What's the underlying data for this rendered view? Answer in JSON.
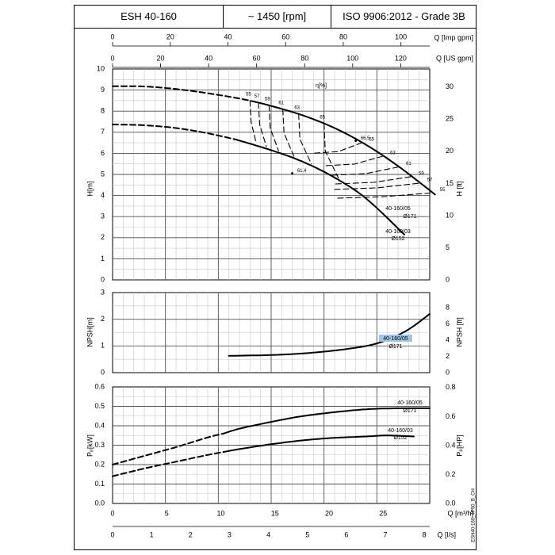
{
  "header": {
    "model": "ESH 40-160",
    "speed": "~ 1450 [rpm]",
    "standard": "ISO 9906:2012 - Grade 3B"
  },
  "side_label": "ESH40-160_4P50_B_CH",
  "chart_data": [
    {
      "type": "line",
      "id": "head",
      "top_axis_imp": {
        "label": "Q [Imp gpm]",
        "ticks": [
          0,
          20,
          40,
          60,
          80,
          100
        ]
      },
      "top_axis_us": {
        "label": "Q [US gpm]",
        "ticks": [
          0,
          20,
          40,
          60,
          80,
          100,
          120
        ]
      },
      "xlim": [
        0,
        30
      ],
      "ylabel": "H[m]",
      "ylim": [
        0,
        10
      ],
      "yticks": [
        0,
        1,
        2,
        3,
        4,
        5,
        6,
        7,
        8,
        9,
        10
      ],
      "y2label": "H [ft]",
      "y2ticks": [
        0,
        5,
        10,
        15,
        20,
        25,
        30
      ],
      "efficiency_label": "η[%]",
      "series": [
        {
          "name": "40-160/05 Ø171",
          "dashed_x": [
            0,
            3,
            6,
            9,
            12,
            13.4
          ],
          "dashed_y": [
            9.18,
            9.17,
            9.05,
            8.85,
            8.6,
            8.45
          ],
          "solid_x": [
            13.4,
            15,
            18,
            21,
            24,
            27,
            30.5
          ],
          "solid_y": [
            8.45,
            8.25,
            7.8,
            7.2,
            6.4,
            5.4,
            4.05
          ]
        },
        {
          "name": "40-160/03 Ø152",
          "dashed_x": [
            0,
            3,
            6,
            9,
            11.7
          ],
          "dashed_y": [
            7.37,
            7.33,
            7.2,
            6.95,
            6.65
          ],
          "solid_x": [
            11.7,
            15,
            18,
            21,
            24,
            27.6
          ],
          "solid_y": [
            6.65,
            6.15,
            5.6,
            4.85,
            3.85,
            2.15
          ]
        }
      ],
      "curve_labels": [
        {
          "name": "40-160/05",
          "dia": "Ø171"
        },
        {
          "name": "40-160/03",
          "dia": "Ø152"
        }
      ],
      "efficiency_levels": [
        "55",
        "57",
        "59",
        "61",
        "63",
        "65",
        "66.5"
      ],
      "efficiency_isolines": [
        {
          "label": "55",
          "right": "55",
          "left_x": 13.0,
          "right_x": 30.3
        },
        {
          "label": "57",
          "right": "57",
          "left_x": 13.8,
          "right_x": 29.1
        },
        {
          "label": "59",
          "right": "59",
          "left_x": 14.8,
          "right_x": 28.3
        },
        {
          "label": "61",
          "right": "61",
          "left_x": 16.1,
          "right_x": 27.1
        },
        {
          "label": "63",
          "right": "63",
          "left_x": 17.6,
          "right_x": 25.6
        },
        {
          "label": "65",
          "right": "65",
          "left_x": 20.0,
          "right_x": 23.6
        }
      ],
      "efficiency_peak": [
        {
          "label": "66.5",
          "q": 23.0,
          "h": 6.6
        },
        {
          "label": "61.4",
          "q": 17.0,
          "h": 5.05
        }
      ]
    },
    {
      "type": "line",
      "id": "npsh",
      "xlim": [
        0,
        30
      ],
      "ylabel": "NPSH[m]",
      "ylim": [
        0,
        3
      ],
      "yticks": [
        0,
        1,
        2,
        3
      ],
      "y2label": "NPSH [ft]",
      "y2ticks": [
        0,
        2,
        4,
        6,
        8
      ],
      "series": [
        {
          "name": "40-160/05 Ø171",
          "x": [
            11,
            15,
            18,
            21,
            24,
            26,
            28,
            30
          ],
          "y": [
            0.63,
            0.66,
            0.72,
            0.83,
            1.0,
            1.23,
            1.62,
            2.2
          ]
        }
      ],
      "label": {
        "name": "40-160/05",
        "dia": "Ø171"
      }
    },
    {
      "type": "line",
      "id": "power",
      "xlabel": "Q [m³/h]",
      "x2label": "Q [l/s]",
      "xlim": [
        0,
        30
      ],
      "xticks": [
        0,
        5,
        10,
        15,
        20,
        25
      ],
      "x2ticks": [
        0,
        1,
        2,
        3,
        4,
        5,
        6,
        7,
        8
      ],
      "ylabel": "Pₚ[kW]",
      "ylim": [
        0.0,
        0.6
      ],
      "yticks": [
        0.0,
        0.1,
        0.2,
        0.3,
        0.4,
        0.5,
        0.6
      ],
      "y2label": "Pₚ[HP]",
      "y2ticks": [
        0.0,
        0.2,
        0.4,
        0.6,
        0.8
      ],
      "series": [
        {
          "name": "40-160/05 Ø171",
          "dashed_x": [
            0,
            3,
            6,
            9,
            10.5
          ],
          "dashed_y": [
            0.2,
            0.245,
            0.29,
            0.34,
            0.36
          ],
          "solid_x": [
            10.5,
            12,
            15,
            18,
            21,
            24,
            27,
            30
          ],
          "solid_y": [
            0.36,
            0.385,
            0.42,
            0.45,
            0.47,
            0.485,
            0.49,
            0.49
          ]
        },
        {
          "name": "40-160/03 Ø152",
          "dashed_x": [
            0,
            3,
            6,
            9,
            10.5
          ],
          "dashed_y": [
            0.14,
            0.18,
            0.215,
            0.25,
            0.265
          ],
          "solid_x": [
            10.5,
            12,
            15,
            18,
            21,
            24,
            26,
            28.5
          ],
          "solid_y": [
            0.265,
            0.28,
            0.305,
            0.325,
            0.338,
            0.345,
            0.35,
            0.345
          ]
        }
      ],
      "curve_labels": [
        {
          "name": "40-160/05",
          "dia": "Ø171"
        },
        {
          "name": "40-160/03",
          "dia": "Ø152"
        }
      ]
    }
  ]
}
